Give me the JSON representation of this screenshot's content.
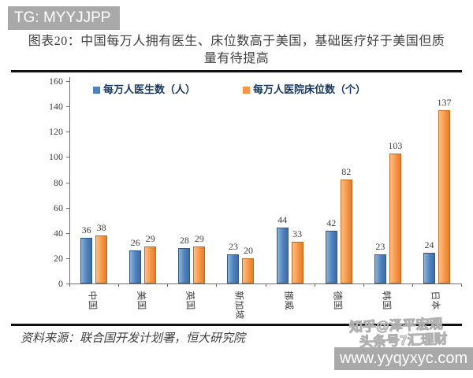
{
  "banner": {
    "text": "TG: MYYJJPP"
  },
  "header": {
    "title_line1": "图表20：中国每万人拥有医生、床位数高于美国，基础医疗好于美国但质",
    "title_line2": "量有待提高"
  },
  "chart_data": {
    "type": "bar",
    "categories": [
      "中国",
      "美国",
      "英国",
      "新加坡",
      "挪威",
      "德国",
      "韩国",
      "日本"
    ],
    "series": [
      {
        "name": "每万人医生数（人）",
        "color": "#4f81bd",
        "values": [
          36,
          26,
          28,
          23,
          44,
          42,
          23,
          24
        ]
      },
      {
        "name": "每万人医院床位数（个）",
        "color": "#f79646",
        "values": [
          38,
          29,
          29,
          20,
          33,
          82,
          103,
          137
        ]
      }
    ],
    "ylim": [
      0,
      160
    ],
    "yticks": [
      0,
      20,
      40,
      60,
      80,
      100,
      120,
      140,
      160
    ],
    "legend_position": "top",
    "grid": false,
    "value_labels": true,
    "title": "中国每万人拥有医生、床位数高于美国，基础医疗好于美国但质量有待提高",
    "xlabel": "",
    "ylabel": ""
  },
  "footer": {
    "source": "资料来源：联合国开发计划署，恒大研究院"
  },
  "watermarks": {
    "line1": "知乎@泽平宏观",
    "line2": "头条号7汇理财",
    "site": "www.yyqyxyc.com"
  }
}
